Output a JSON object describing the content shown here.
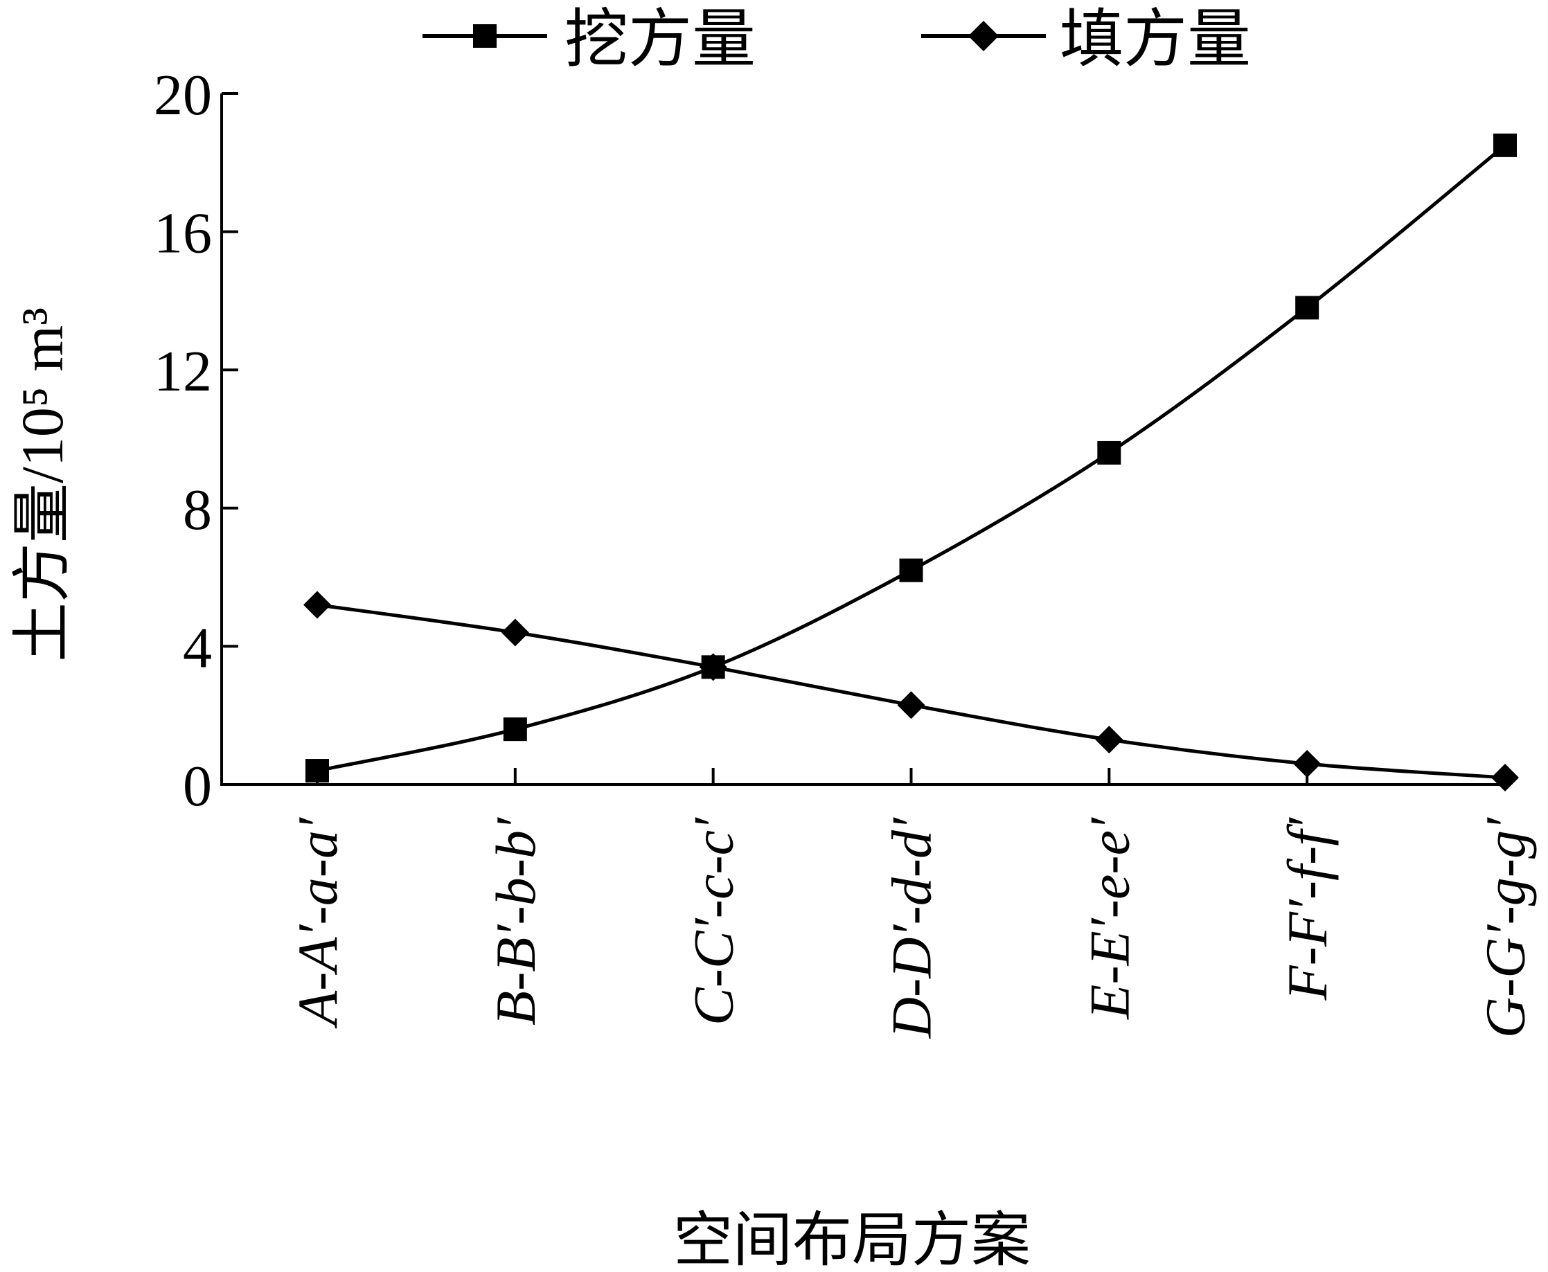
{
  "chart_data": {
    "type": "line",
    "xlabel": "空间布局方案",
    "ylabel": "土方量/10⁵ m³",
    "ylim": [
      0,
      20
    ],
    "yticks": [
      "0",
      "4",
      "8",
      "12",
      "16",
      "20"
    ],
    "categories": [
      "A-A′-a-a′",
      "B-B′-b-b′",
      "C-C′-c-c′",
      "D-D′-d-d′",
      "E-E′-e-e′",
      "F-F′-f-f′",
      "G-G′-g-g′"
    ],
    "series": [
      {
        "name": "挖方量",
        "marker": "square",
        "values": [
          0.4,
          1.6,
          3.4,
          6.2,
          9.6,
          13.8,
          18.5
        ]
      },
      {
        "name": "填方量",
        "marker": "diamond",
        "values": [
          5.2,
          4.4,
          3.4,
          2.3,
          1.3,
          0.6,
          0.2
        ]
      }
    ],
    "grid": false,
    "legend": "top",
    "colors": {
      "line": "#000000"
    }
  }
}
